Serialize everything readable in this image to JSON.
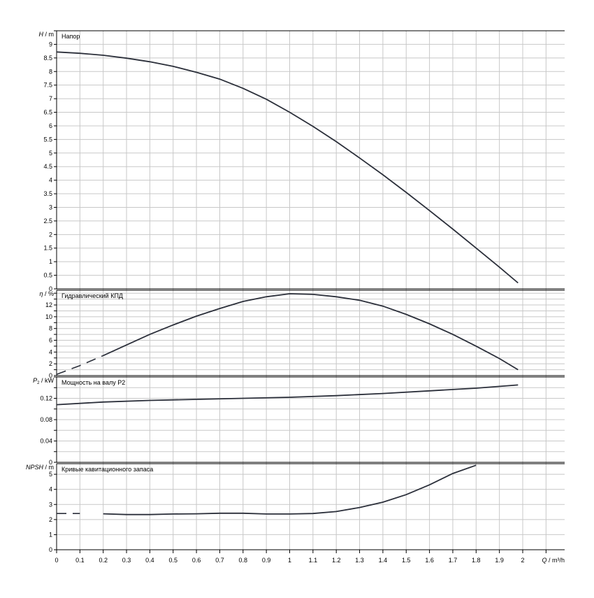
{
  "chart_data": [
    {
      "type": "line",
      "panel": "head",
      "title": "Напор",
      "ylabel_symbol": "H",
      "ylabel_unit": " / m",
      "ylim": [
        0,
        9.5
      ],
      "yticks": [
        "0",
        "0.5",
        "1",
        "1.5",
        "2",
        "2.5",
        "3",
        "3.5",
        "4",
        "4.5",
        "5",
        "5.5",
        "6",
        "6.5",
        "7",
        "7.5",
        "8",
        "8.5",
        "9"
      ],
      "series": [
        {
          "x": [
            0,
            0.1,
            0.2,
            0.3,
            0.4,
            0.5,
            0.6,
            0.7,
            0.8,
            0.9,
            1.0,
            1.1,
            1.2,
            1.3,
            1.4,
            1.5,
            1.6,
            1.7,
            1.8,
            1.9,
            1.98
          ],
          "y": [
            8.72,
            8.67,
            8.6,
            8.49,
            8.36,
            8.19,
            7.97,
            7.72,
            7.38,
            6.98,
            6.5,
            5.98,
            5.42,
            4.82,
            4.2,
            3.55,
            2.88,
            2.2,
            1.5,
            0.8,
            0.22
          ]
        }
      ]
    },
    {
      "type": "line",
      "panel": "efficiency",
      "title": "Гидравлический КПД",
      "ylabel_symbol": "η",
      "ylabel_unit": " / %",
      "ylim": [
        0,
        14.5
      ],
      "yticks": [
        "0",
        "2",
        "4",
        "6",
        "8",
        "10",
        "12"
      ],
      "series": [
        {
          "dashed_until_x": 0.2,
          "x": [
            0,
            0.1,
            0.2,
            0.3,
            0.4,
            0.5,
            0.6,
            0.7,
            0.8,
            0.9,
            1.0,
            1.1,
            1.2,
            1.3,
            1.4,
            1.5,
            1.6,
            1.7,
            1.8,
            1.9,
            1.98
          ],
          "y": [
            0.2,
            1.7,
            3.4,
            5.2,
            7.0,
            8.6,
            10.1,
            11.4,
            12.6,
            13.4,
            13.9,
            13.8,
            13.4,
            12.8,
            11.8,
            10.4,
            8.8,
            7.0,
            5.0,
            2.9,
            1.0
          ]
        }
      ]
    },
    {
      "type": "line",
      "panel": "power",
      "title": "Мощность на валу P2",
      "ylabel_symbol": "P",
      "ylabel_sub": "2",
      "ylabel_unit": " / kW",
      "ylim": [
        0,
        0.16
      ],
      "yticks": [
        "0",
        "0.04",
        "0.08",
        "0.12"
      ],
      "series": [
        {
          "x": [
            0,
            0.2,
            0.4,
            0.6,
            0.8,
            1.0,
            1.2,
            1.4,
            1.6,
            1.8,
            1.98
          ],
          "y": [
            0.108,
            0.113,
            0.116,
            0.118,
            0.12,
            0.122,
            0.125,
            0.129,
            0.134,
            0.139,
            0.145
          ]
        }
      ]
    },
    {
      "type": "line",
      "panel": "npsh",
      "title": "Кривые кавитационного запаса",
      "ylabel_symbol": "NPSH",
      "ylabel_unit": " / m",
      "ylim": [
        0,
        5.7
      ],
      "yticks": [
        "0",
        "1",
        "2",
        "3",
        "4",
        "5"
      ],
      "xlabel_symbol": "Q",
      "xlabel_unit": " / m³/h",
      "xlim": [
        0,
        2.2
      ],
      "xticks": [
        "0",
        "0.1",
        "0.2",
        "0.3",
        "0.4",
        "0.5",
        "0.6",
        "0.7",
        "0.8",
        "0.9",
        "1",
        "1.1",
        "1.2",
        "1.3",
        "1.4",
        "1.5",
        "1.6",
        "1.7",
        "1.8",
        "1.9",
        "2"
      ],
      "series": [
        {
          "dashed_until_x": 0.15,
          "x": [
            0,
            0.1,
            0.2,
            0.3,
            0.4,
            0.5,
            0.6,
            0.7,
            0.8,
            0.9,
            1.0,
            1.1,
            1.2,
            1.3,
            1.4,
            1.5,
            1.6,
            1.7,
            1.8
          ],
          "y": [
            2.4,
            2.4,
            2.38,
            2.33,
            2.33,
            2.37,
            2.38,
            2.42,
            2.42,
            2.37,
            2.37,
            2.4,
            2.53,
            2.8,
            3.15,
            3.65,
            4.3,
            5.05,
            5.6
          ]
        }
      ]
    }
  ]
}
